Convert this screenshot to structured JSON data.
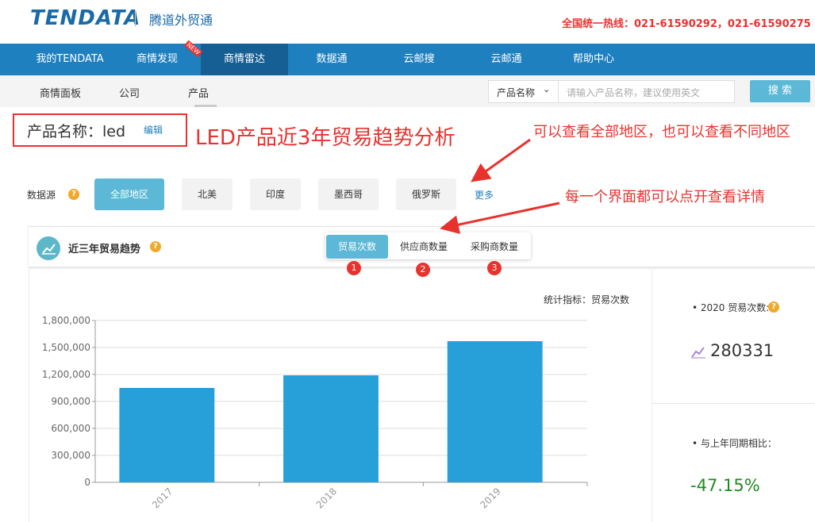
{
  "header": {
    "logo": "TENDATA",
    "brand": "腾道外贸通",
    "hotline": "全国统一热线：021-61590292，021-61590275"
  },
  "nav": {
    "items": [
      "我的TENDATA",
      "商情发现",
      "商情雷达",
      "数据通",
      "云邮搜",
      "云邮通",
      "帮助中心"
    ],
    "badge": "NEW"
  },
  "subnav": {
    "items": [
      "商情面板",
      "公司",
      "产品"
    ]
  },
  "search": {
    "field": "产品名称",
    "placeholder": "请输入产品名称，建议使用英文",
    "button": "搜 索"
  },
  "product": {
    "label": "产品名称：led",
    "edit": "编辑"
  },
  "annotations": [
    "LED产品近3年贸易趋势分析",
    "可以查看全部地区，也可以查看不同地区",
    "每一个界面都可以点开查看详情"
  ],
  "data_source": {
    "label": "数据源",
    "regions": [
      "全部地区",
      "北美",
      "印度",
      "墨西哥",
      "俄罗斯"
    ],
    "more": "更多"
  },
  "card": {
    "title": "近三年贸易趋势",
    "tabs": [
      "贸易次数",
      "供应商数量",
      "采购商数量"
    ],
    "tab_numbers": [
      "1",
      "2",
      "3"
    ],
    "metric": "统计指标：贸易次数"
  },
  "chart_data": {
    "type": "bar",
    "categories": [
      "2017",
      "2018",
      "2019"
    ],
    "values": [
      1050000,
      1190000,
      1570000
    ],
    "color": "#279fd8",
    "ylim": [
      0,
      1800000
    ],
    "yticks": [
      0,
      {
        "value": 300000,
        "label": "300,000"
      },
      {
        "value": 600000,
        "label": "600,000"
      },
      {
        "value": 900000,
        "label": "900,000"
      },
      {
        "value": 1200000,
        "label": "1,200,000"
      },
      {
        "value": 1500000,
        "label": "1,500,000"
      },
      {
        "value": 1800000,
        "label": "1,800,000"
      }
    ],
    "grid": true
  },
  "stats": {
    "label_1": "2020 贸易次数:",
    "value_1": 280331,
    "label_2": "与上年同期相比：",
    "value_2": "-47.15%"
  }
}
